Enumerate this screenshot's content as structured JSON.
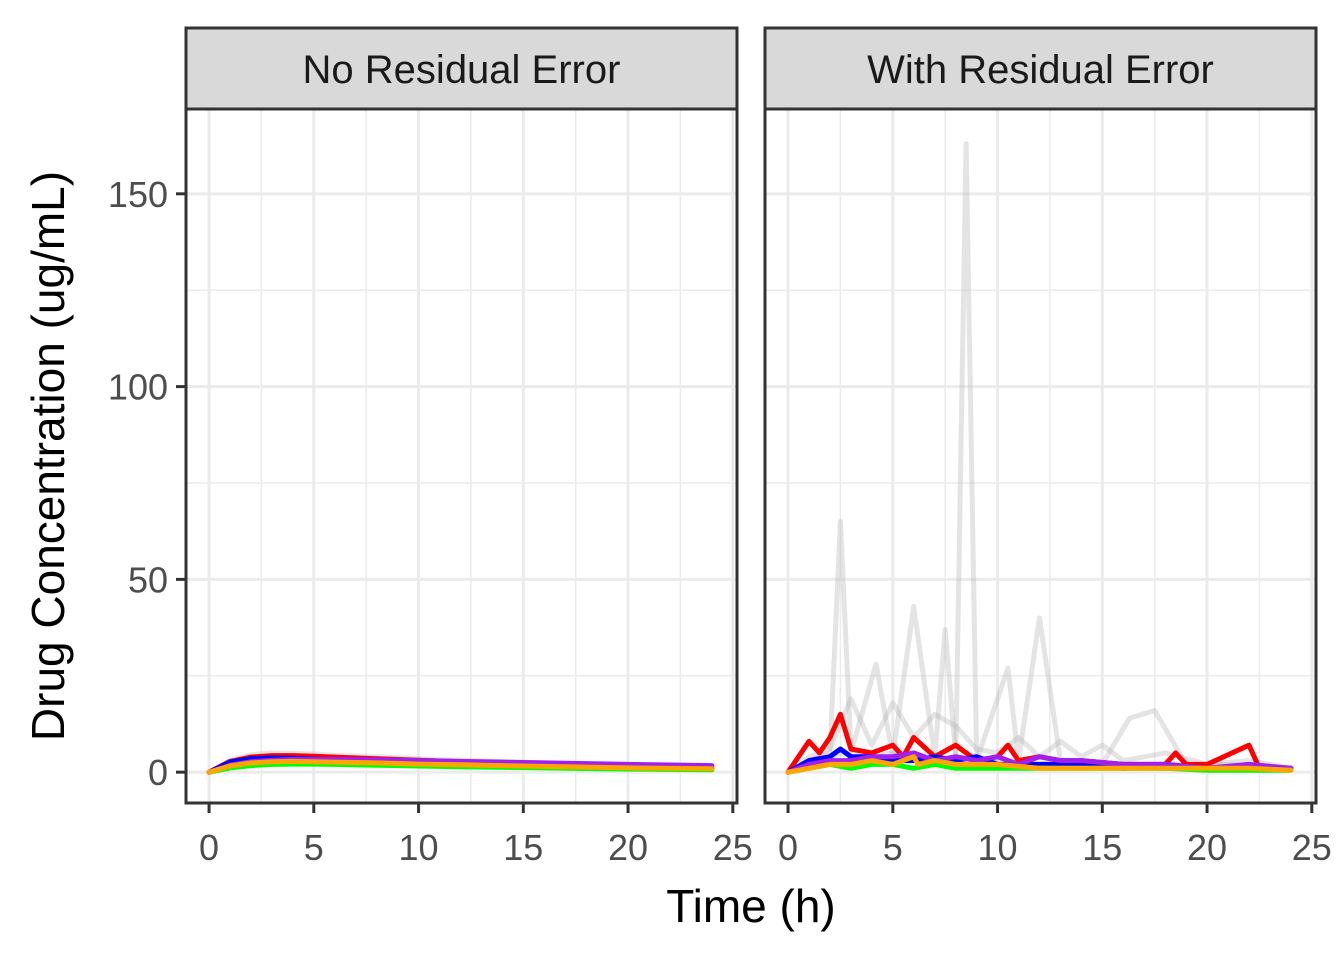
{
  "chart_data": {
    "type": "line",
    "xlabel": "Time (h)",
    "ylabel": "Drug Concentration (ug/mL)",
    "xlim": [
      -1.1,
      25.2
    ],
    "ylim": [
      -8,
      172
    ],
    "x_ticks": [
      0,
      5,
      10,
      15,
      20,
      25
    ],
    "y_ticks": [
      0,
      50,
      100,
      150
    ],
    "grid": true,
    "colors": {
      "red": "#ff0000",
      "blue": "#0000ff",
      "green": "#00ff00",
      "purple": "#a020f0",
      "orange": "#ffa500",
      "background_grey": "#b3b3b3",
      "strip_fill": "#d9d9d9"
    },
    "panels": [
      {
        "strip": "No Residual Error",
        "background_series": [
          {
            "x": [
              0,
              1,
              2,
              3,
              4,
              5,
              6,
              8,
              10,
              12,
              16,
              20,
              24
            ],
            "y": [
              0,
              3.0,
              4.5,
              5.0,
              4.9,
              4.7,
              4.4,
              4.0,
              3.5,
              3.1,
              2.4,
              1.8,
              1.4
            ]
          },
          {
            "x": [
              0,
              1,
              2,
              3,
              4,
              5,
              6,
              8,
              10,
              12,
              16,
              20,
              24
            ],
            "y": [
              0,
              1.5,
              2.4,
              2.8,
              2.9,
              2.9,
              2.8,
              2.6,
              2.3,
              2.1,
              1.7,
              1.3,
              1.0
            ]
          },
          {
            "x": [
              0,
              1,
              2,
              3,
              4,
              5,
              6,
              8,
              10,
              12,
              16,
              20,
              24
            ],
            "y": [
              0,
              2.2,
              3.4,
              3.9,
              4.0,
              3.9,
              3.7,
              3.3,
              2.9,
              2.6,
              2.0,
              1.5,
              1.1
            ]
          }
        ],
        "series": [
          {
            "color": "red",
            "x": [
              0,
              1,
              2,
              3,
              4,
              5,
              6,
              8,
              10,
              12,
              16,
              20,
              24
            ],
            "y": [
              0,
              2.8,
              3.9,
              4.3,
              4.3,
              4.1,
              3.9,
              3.5,
              3.1,
              2.7,
              2.1,
              1.6,
              1.2
            ]
          },
          {
            "color": "blue",
            "x": [
              0,
              1,
              2,
              3,
              4,
              5,
              6,
              8,
              10,
              12,
              16,
              20,
              24
            ],
            "y": [
              0,
              2.6,
              3.5,
              3.7,
              3.6,
              3.4,
              3.2,
              2.8,
              2.4,
              2.1,
              1.6,
              1.2,
              0.9
            ]
          },
          {
            "color": "green",
            "x": [
              0,
              1,
              2,
              3,
              4,
              5,
              6,
              8,
              10,
              12,
              16,
              20,
              24
            ],
            "y": [
              0,
              1.1,
              1.7,
              2.0,
              2.1,
              2.1,
              2.0,
              1.8,
              1.6,
              1.4,
              1.1,
              0.8,
              0.6
            ]
          },
          {
            "color": "purple",
            "x": [
              0,
              1,
              2,
              3,
              4,
              5,
              6,
              8,
              10,
              12,
              16,
              20,
              24
            ],
            "y": [
              0,
              1.8,
              2.7,
              3.1,
              3.3,
              3.3,
              3.3,
              3.2,
              3.0,
              2.8,
              2.4,
              2.0,
              1.7
            ]
          },
          {
            "color": "orange",
            "x": [
              0,
              1,
              2,
              3,
              4,
              5,
              6,
              8,
              10,
              12,
              16,
              20,
              24
            ],
            "y": [
              0,
              1.6,
              2.4,
              2.7,
              2.8,
              2.7,
              2.6,
              2.4,
              2.1,
              1.9,
              1.5,
              1.1,
              0.9
            ]
          }
        ]
      },
      {
        "strip": "With Residual Error",
        "background_series": [
          {
            "x": [
              0,
              1,
              2,
              2.5,
              3,
              4,
              5,
              6,
              7,
              8,
              8.5,
              9,
              10,
              11,
              12,
              14,
              16,
              18,
              20,
              22,
              24
            ],
            "y": [
              0,
              3,
              5,
              65,
              6,
              4,
              5,
              3,
              4,
              3,
              163,
              4,
              3,
              2,
              2,
              3,
              2,
              2,
              2,
              1,
              1
            ]
          },
          {
            "x": [
              0,
              1,
              2,
              3,
              4.2,
              5,
              6,
              7,
              7.5,
              8,
              9,
              10.5,
              11,
              12,
              13,
              15,
              16.3,
              17.5,
              19,
              21,
              24
            ],
            "y": [
              0,
              2,
              4,
              5,
              28,
              4,
              43,
              4,
              37,
              4,
              3,
              27,
              3,
              40,
              3,
              2,
              14,
              16,
              2,
              2,
              1
            ]
          },
          {
            "x": [
              0,
              1,
              2,
              3,
              4,
              5,
              6,
              7,
              8,
              9,
              10,
              11,
              12,
              13,
              14,
              15,
              16,
              18,
              20,
              22,
              24
            ],
            "y": [
              0,
              4,
              6,
              19,
              7,
              18,
              9,
              15,
              12,
              6,
              5,
              9,
              4,
              8,
              4,
              7,
              3,
              5,
              2,
              3,
              1
            ]
          }
        ],
        "series": [
          {
            "color": "red",
            "x": [
              0,
              1,
              1.5,
              2,
              2.5,
              3,
              4,
              5,
              5.5,
              6,
              7,
              8,
              9,
              10,
              10.5,
              11,
              12,
              13,
              14,
              16,
              18,
              18.5,
              19,
              20,
              22,
              22.5,
              24
            ],
            "y": [
              0,
              8,
              5,
              9,
              15,
              6,
              5,
              7,
              4,
              9,
              4,
              7,
              3,
              4,
              7,
              3,
              4,
              3,
              3,
              2,
              2,
              5,
              2,
              2,
              7,
              1,
              1
            ]
          },
          {
            "color": "blue",
            "x": [
              0,
              1,
              2,
              2.5,
              3,
              4,
              5,
              6,
              7,
              8,
              9,
              10,
              12,
              14,
              16,
              18,
              20,
              22,
              24
            ],
            "y": [
              0,
              3,
              4,
              6,
              4,
              4,
              3,
              3,
              4,
              3,
              4,
              2,
              2,
              2,
              1,
              2,
              1,
              1,
              1
            ]
          },
          {
            "color": "green",
            "x": [
              0,
              1,
              2,
              3,
              4,
              5,
              6,
              7,
              8,
              10,
              12,
              14,
              16,
              18,
              20,
              22,
              24
            ],
            "y": [
              0,
              1,
              2,
              1,
              2,
              2,
              1,
              2,
              1,
              1,
              1,
              1,
              1,
              1,
              0.5,
              0.5,
              0.5
            ]
          },
          {
            "color": "purple",
            "x": [
              0,
              1,
              2,
              3,
              4,
              5,
              6,
              7,
              8,
              9,
              10,
              11,
              12,
              13,
              14,
              16,
              18,
              20,
              22,
              24
            ],
            "y": [
              0,
              2,
              3,
              3,
              4,
              4,
              5,
              3,
              4,
              3,
              4,
              2,
              4,
              3,
              3,
              2,
              2,
              1,
              2,
              1
            ]
          },
          {
            "color": "orange",
            "x": [
              0,
              1,
              2,
              3,
              4,
              5,
              6,
              6.2,
              7,
              8,
              9,
              10,
              12,
              14,
              16,
              18,
              20,
              22,
              24
            ],
            "y": [
              0,
              1,
              2,
              2,
              3,
              2,
              4,
              2,
              3,
              2,
              2,
              2,
              1,
              1,
              1,
              1,
              1,
              1,
              0.5
            ]
          }
        ]
      }
    ]
  }
}
